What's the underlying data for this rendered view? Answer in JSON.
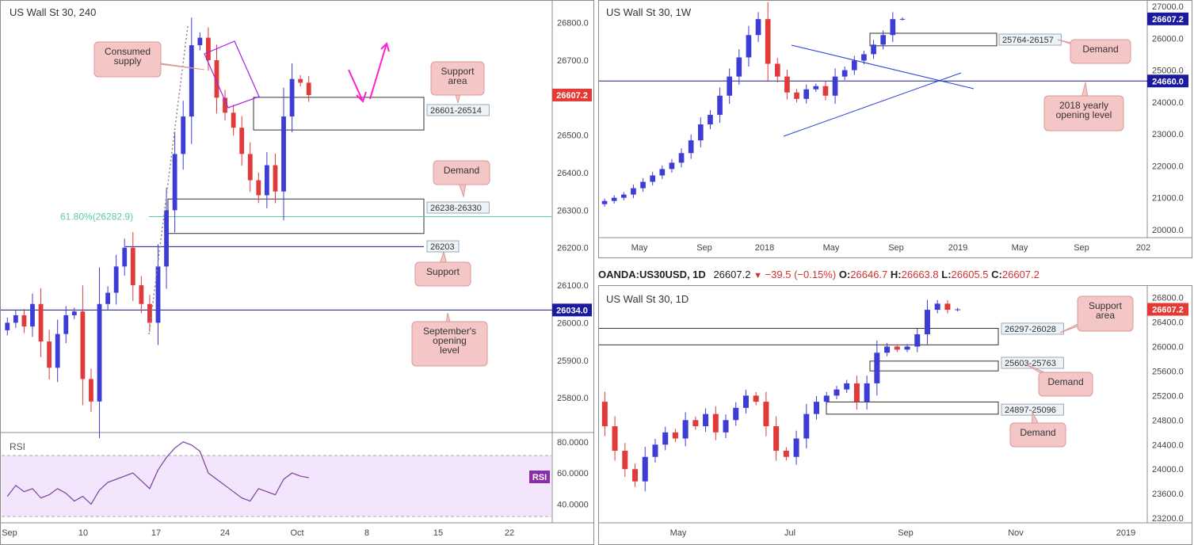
{
  "charts": {
    "h4": {
      "title": "US Wall St 30, 240",
      "price_ticks": [
        "26800.0",
        "26700.0",
        "26600.0",
        "26500.0",
        "26400.0",
        "26300.0",
        "26200.0",
        "26100.0",
        "26000.0",
        "25900.0",
        "25800.0"
      ],
      "date_ticks": [
        "Sep",
        "10",
        "17",
        "24",
        "Oct",
        "8",
        "15",
        "22"
      ],
      "current_price_tag": "26607.2",
      "level_tag": "26034.0",
      "fib_label": "61.80%(26282.9)",
      "zone_labels": [
        "26601-26514",
        "26238-26330",
        "26203"
      ],
      "callouts": [
        "Consumed supply",
        "Support area",
        "Demand",
        "Support",
        "September's opening level"
      ],
      "rsi": {
        "label": "RSI",
        "tag": "RSI",
        "ticks": [
          "80.0000",
          "60.0000",
          "40.0000"
        ]
      }
    },
    "weekly": {
      "title": "US Wall St 30, 1W",
      "price_ticks": [
        "27000.0",
        "26000.0",
        "25000.0",
        "24000.0",
        "23000.0",
        "22000.0",
        "21000.0",
        "20000.0"
      ],
      "date_ticks": [
        "May",
        "Sep",
        "2018",
        "May",
        "Sep",
        "2019",
        "May",
        "Sep",
        "202"
      ],
      "current_price_tag": "26607.2",
      "level_tag": "24660.0",
      "zone_label": "25764-26157",
      "callouts": [
        "Demand",
        "2018 yearly opening level"
      ]
    },
    "daily": {
      "title": "US Wall St 30, 1D",
      "price_ticks": [
        "26800.0",
        "26400.0",
        "26000.0",
        "25600.0",
        "25200.0",
        "24800.0",
        "24400.0",
        "24000.0",
        "23600.0",
        "23200.0"
      ],
      "date_ticks": [
        "May",
        "Jul",
        "Sep",
        "Nov",
        "2019"
      ],
      "current_price_tag": "26607.2",
      "zone_labels": [
        "26297-26028",
        "25603-25763",
        "24897-25096"
      ],
      "callouts": [
        "Support area",
        "Demand",
        "Demand"
      ]
    }
  },
  "quote_bar": {
    "symbol": "OANDA:US30USD, 1D",
    "last": "26607.2",
    "change": "−39.5 (−0.15%)",
    "o_label": "O:",
    "o": "26646.7",
    "h_label": "H:",
    "h": "26663.8",
    "l_label": "L:",
    "l": "26605.5",
    "c_label": "C:",
    "c": "26607.2"
  },
  "chart_data": [
    {
      "type": "candlestick",
      "title": "US Wall St 30, 240",
      "ylim": [
        25720,
        26850
      ],
      "x_ticks": [
        "Sep",
        "10",
        "17",
        "24",
        "Oct",
        "8",
        "15",
        "22"
      ],
      "levels": [
        {
          "label": "26034.0",
          "value": 26034
        },
        {
          "label": "26203",
          "value": 26203
        },
        {
          "label": "61.80%(26282.9)",
          "value": 26282.9
        }
      ],
      "zones": [
        {
          "label": "26601-26514",
          "low": 26514,
          "high": 26601
        },
        {
          "label": "26238-26330",
          "low": 26238,
          "high": 26330
        }
      ],
      "closes_approx": [
        26000,
        26020,
        25990,
        26050,
        25950,
        25880,
        25970,
        26020,
        26030,
        25850,
        25790,
        26050,
        26080,
        26150,
        26200,
        26100,
        26050,
        26000,
        26150,
        26300,
        26450,
        26550,
        26740,
        26760,
        26700,
        26600,
        26560,
        26520,
        26450,
        26380,
        26340,
        26420,
        26350,
        26550,
        26650,
        26640,
        26607.2
      ],
      "last": 26607.2
    },
    {
      "type": "line",
      "title": "RSI",
      "ylim": [
        28,
        85
      ],
      "y_ticks": [
        80,
        60,
        40
      ],
      "values": [
        45,
        52,
        48,
        50,
        44,
        46,
        50,
        47,
        42,
        45,
        40,
        49,
        54,
        56,
        58,
        60,
        55,
        50,
        62,
        70,
        76,
        80,
        78,
        74,
        60,
        56,
        52,
        48,
        44,
        42,
        50,
        48,
        46,
        56,
        60,
        58,
        57
      ]
    },
    {
      "type": "candlestick",
      "title": "US Wall St 30, 1W",
      "ylim": [
        19800,
        27100
      ],
      "x_ticks": [
        "May",
        "Sep",
        "2018",
        "May",
        "Sep",
        "2019",
        "May",
        "Sep",
        "202"
      ],
      "levels": [
        {
          "label": "24660.0",
          "value": 24660
        }
      ],
      "zones": [
        {
          "label": "25764-26157",
          "low": 25764,
          "high": 26157
        }
      ],
      "closes_approx": [
        20900,
        21000,
        21100,
        21300,
        21500,
        21700,
        21900,
        22100,
        22400,
        22800,
        23300,
        23600,
        24200,
        24800,
        25400,
        26100,
        26600,
        25200,
        24800,
        24300,
        24100,
        24400,
        24500,
        24200,
        24800,
        25000,
        25300,
        25500,
        25800,
        26100,
        26600,
        26607.2
      ],
      "last": 26607.2
    },
    {
      "type": "candlestick",
      "title": "US Wall St 30, 1D",
      "ylim": [
        23150,
        26950
      ],
      "x_ticks": [
        "May",
        "Jul",
        "Sep",
        "Nov",
        "2019"
      ],
      "zones": [
        {
          "label": "26297-26028",
          "low": 26028,
          "high": 26297
        },
        {
          "label": "25603-25763",
          "low": 25603,
          "high": 25763
        },
        {
          "label": "24897-25096",
          "low": 24897,
          "high": 25096
        }
      ],
      "closes_approx": [
        24700,
        24300,
        24000,
        23800,
        24200,
        24400,
        24600,
        24500,
        24800,
        24700,
        24900,
        24600,
        24800,
        25000,
        25200,
        25100,
        24700,
        24300,
        24200,
        24500,
        24900,
        25100,
        25200,
        25300,
        25400,
        25100,
        25400,
        25900,
        26000,
        25950,
        26000,
        26200,
        26600,
        26700,
        26600,
        26607.2
      ],
      "last": 26607.2
    }
  ]
}
